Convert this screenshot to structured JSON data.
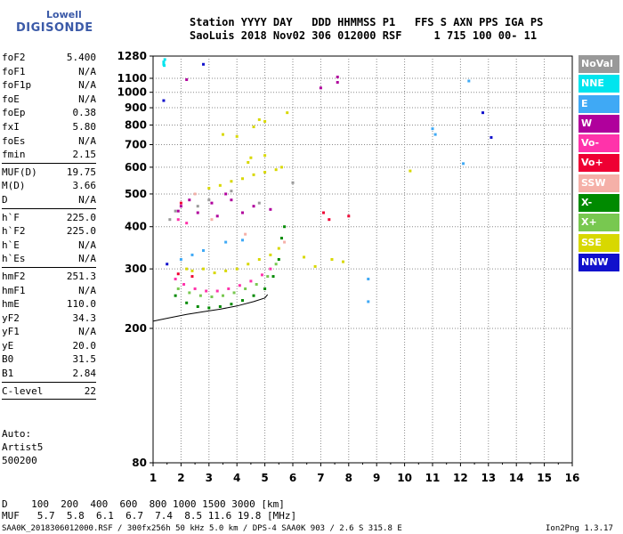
{
  "logo": {
    "line1": "Lowell",
    "line2": "DIGISONDE"
  },
  "header": {
    "labels": "Station YYYY DAY   DDD HHMMSS P1   FFS S AXN PPS IGA PS",
    "values": "SaoLuis 2018 Nov02 306 012000 RSF     1 715 100 00- 11"
  },
  "params": {
    "group1": [
      {
        "label": "foF2",
        "value": "5.400"
      },
      {
        "label": "foF1",
        "value": "N/A"
      },
      {
        "label": "foF1p",
        "value": "N/A"
      },
      {
        "label": "foE",
        "value": "N/A"
      },
      {
        "label": "foEp",
        "value": "0.38"
      },
      {
        "label": "fxI",
        "value": "5.80"
      },
      {
        "label": "foEs",
        "value": "N/A"
      },
      {
        "label": "fmin",
        "value": "2.15"
      }
    ],
    "group2": [
      {
        "label": "MUF(D)",
        "value": "19.75"
      },
      {
        "label": "M(D)",
        "value": "3.66"
      },
      {
        "label": "D",
        "value": "N/A"
      }
    ],
    "group3": [
      {
        "label": "h`F",
        "value": "225.0"
      },
      {
        "label": "h`F2",
        "value": "225.0"
      },
      {
        "label": "h`E",
        "value": "N/A"
      },
      {
        "label": "h`Es",
        "value": "N/A"
      }
    ],
    "group4": [
      {
        "label": "hmF2",
        "value": "251.3"
      },
      {
        "label": "hmF1",
        "value": "N/A"
      },
      {
        "label": "hmE",
        "value": "110.0"
      },
      {
        "label": "yF2",
        "value": "34.3"
      },
      {
        "label": "yF1",
        "value": "N/A"
      },
      {
        "label": "yE",
        "value": "20.0"
      },
      {
        "label": "B0",
        "value": "31.5"
      },
      {
        "label": "B1",
        "value": "2.84"
      }
    ],
    "group5": [
      {
        "label": "C-level",
        "value": "22"
      }
    ]
  },
  "auto": {
    "line1": "Auto:",
    "line2": "Artist5",
    "line3": "500200"
  },
  "footer": {
    "d_row": "D    100  200  400  600  800 1000 1500 3000 [km]",
    "muf_row": "MUF   5.7  5.8  6.1  6.7  7.4  8.5 11.6 19.8 [MHz]"
  },
  "source_line": "SAA0K_2018306012000.RSF / 300fx256h 50 kHz 5.0 km / DPS-4 SAA0K 903 / 2.6 S 315.8 E",
  "version": "Ion2Png 1.3.17",
  "legend": [
    {
      "label": "NoVal",
      "color": "#999999"
    },
    {
      "label": "NNE",
      "color": "#00e5ee"
    },
    {
      "label": "E",
      "color": "#3fa9f5"
    },
    {
      "label": "W",
      "color": "#b0009c"
    },
    {
      "label": "Vo-",
      "color": "#ff33aa"
    },
    {
      "label": "Vo+",
      "color": "#ee0033"
    },
    {
      "label": "SSW",
      "color": "#f5b0a8"
    },
    {
      "label": "X-",
      "color": "#008a00"
    },
    {
      "label": "X+",
      "color": "#78c850"
    },
    {
      "label": "SSE",
      "color": "#d8d800"
    },
    {
      "label": "NNW",
      "color": "#1010cc"
    }
  ],
  "chart_data": {
    "type": "scatter",
    "xlim": [
      1,
      16
    ],
    "ylim": [
      80,
      1280
    ],
    "y_scale": "log",
    "x_ticks": [
      "1",
      "2",
      "3",
      "4",
      "5",
      "6",
      "7",
      "8",
      "9",
      "10",
      "11",
      "12",
      "13",
      "14",
      "15",
      "16"
    ],
    "y_ticks": [
      "80",
      "200",
      "300",
      "400",
      "500",
      "600",
      "700",
      "800",
      "900",
      "1000",
      "1100",
      "1280"
    ],
    "grid": true,
    "series": [
      {
        "color_ref": "NNE",
        "points": [
          [
            1.38,
            1210
          ],
          [
            1.38,
            1230
          ],
          [
            1.42,
            1250
          ],
          [
            1.4,
            1200
          ]
        ]
      },
      {
        "color_ref": "NNW",
        "points": [
          [
            1.38,
            945
          ],
          [
            2.8,
            1210
          ],
          [
            12.8,
            870
          ],
          [
            13.1,
            735
          ],
          [
            1.5,
            310
          ]
        ]
      },
      {
        "color_ref": "W",
        "points": [
          [
            2.2,
            1090
          ],
          [
            7.6,
            1110
          ],
          [
            7.0,
            1030
          ],
          [
            7.6,
            1070
          ],
          [
            1.9,
            445
          ],
          [
            2.0,
            460
          ],
          [
            2.3,
            480
          ],
          [
            2.6,
            440
          ],
          [
            3.1,
            470
          ],
          [
            3.3,
            430
          ],
          [
            3.6,
            500
          ],
          [
            3.8,
            480
          ],
          [
            4.2,
            440
          ],
          [
            4.6,
            460
          ],
          [
            5.2,
            450
          ]
        ]
      },
      {
        "color_ref": "SSE",
        "points": [
          [
            4.8,
            830
          ],
          [
            4.6,
            790
          ],
          [
            5.0,
            820
          ],
          [
            5.8,
            870
          ],
          [
            3.5,
            750
          ],
          [
            4.0,
            740
          ],
          [
            4.5,
            640
          ],
          [
            4.4,
            620
          ],
          [
            5.0,
            650
          ],
          [
            3.0,
            520
          ],
          [
            3.4,
            530
          ],
          [
            3.8,
            545
          ],
          [
            4.2,
            555
          ],
          [
            4.6,
            570
          ],
          [
            5.0,
            580
          ],
          [
            5.4,
            590
          ],
          [
            5.6,
            600
          ],
          [
            7.4,
            320
          ],
          [
            7.8,
            315
          ],
          [
            6.4,
            325
          ],
          [
            6.8,
            305
          ],
          [
            2.2,
            300
          ],
          [
            2.4,
            296
          ],
          [
            2.8,
            300
          ],
          [
            3.2,
            292
          ],
          [
            3.6,
            296
          ],
          [
            4.0,
            300
          ],
          [
            4.4,
            310
          ],
          [
            4.8,
            320
          ],
          [
            5.2,
            330
          ],
          [
            5.5,
            345
          ],
          [
            10.2,
            585
          ]
        ]
      },
      {
        "color_ref": "X-",
        "points": [
          [
            1.8,
            250
          ],
          [
            2.2,
            238
          ],
          [
            2.6,
            232
          ],
          [
            3.0,
            230
          ],
          [
            3.4,
            232
          ],
          [
            3.8,
            236
          ],
          [
            4.2,
            242
          ],
          [
            4.6,
            250
          ],
          [
            5.0,
            262
          ],
          [
            5.3,
            285
          ],
          [
            5.5,
            320
          ],
          [
            5.6,
            370
          ],
          [
            5.7,
            400
          ]
        ]
      },
      {
        "color_ref": "X+",
        "points": [
          [
            1.9,
            262
          ],
          [
            2.3,
            255
          ],
          [
            2.7,
            250
          ],
          [
            3.1,
            248
          ],
          [
            3.5,
            250
          ],
          [
            3.9,
            255
          ],
          [
            4.3,
            262
          ],
          [
            4.7,
            270
          ],
          [
            5.1,
            285
          ],
          [
            5.4,
            310
          ]
        ]
      },
      {
        "color_ref": "Vo-",
        "points": [
          [
            1.8,
            280
          ],
          [
            2.1,
            270
          ],
          [
            2.5,
            262
          ],
          [
            2.9,
            258
          ],
          [
            3.3,
            258
          ],
          [
            3.7,
            262
          ],
          [
            4.1,
            268
          ],
          [
            4.5,
            276
          ],
          [
            4.9,
            288
          ],
          [
            5.2,
            300
          ],
          [
            1.9,
            420
          ],
          [
            2.2,
            410
          ]
        ]
      },
      {
        "color_ref": "Vo+",
        "points": [
          [
            1.9,
            290
          ],
          [
            2.4,
            285
          ],
          [
            2.0,
            470
          ],
          [
            7.1,
            440
          ],
          [
            8.0,
            430
          ],
          [
            7.3,
            420
          ]
        ]
      },
      {
        "color_ref": "E",
        "points": [
          [
            2.0,
            320
          ],
          [
            2.4,
            330
          ],
          [
            2.8,
            340
          ],
          [
            3.6,
            360
          ],
          [
            4.2,
            365
          ],
          [
            8.7,
            280
          ],
          [
            11.0,
            780
          ],
          [
            11.1,
            750
          ],
          [
            12.3,
            1080
          ],
          [
            12.1,
            615
          ],
          [
            8.7,
            240
          ]
        ]
      },
      {
        "color_ref": "NoVal",
        "points": [
          [
            1.6,
            420
          ],
          [
            1.8,
            445
          ],
          [
            2.6,
            460
          ],
          [
            3.0,
            480
          ],
          [
            3.8,
            510
          ],
          [
            4.8,
            470
          ],
          [
            6.0,
            540
          ]
        ]
      },
      {
        "color_ref": "SSW",
        "points": [
          [
            2.5,
            500
          ],
          [
            3.1,
            420
          ],
          [
            4.3,
            380
          ],
          [
            5.7,
            360
          ]
        ]
      }
    ]
  }
}
